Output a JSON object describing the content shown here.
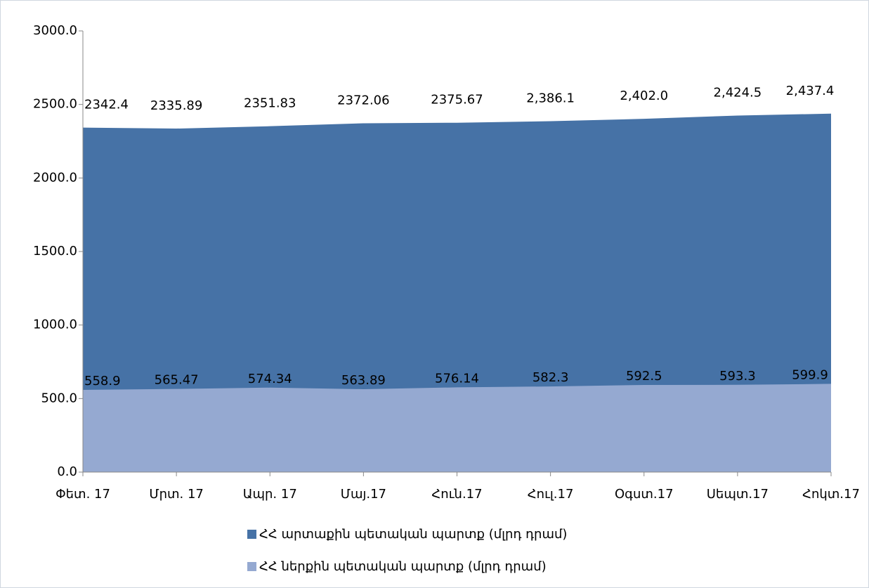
{
  "chart_data": {
    "type": "area",
    "categories": [
      "Փետ. 17",
      "Մրտ. 17",
      "Ապր. 17",
      "Մայ.17",
      "Հուն.17",
      "Հուլ.17",
      "Օգստ.17",
      "Սեպտ.17",
      "Հոկտ.17"
    ],
    "series": [
      {
        "name": "ՀՀ արտաքին պետական պարտք (մլրդ դրամ)",
        "color": "#4672a6",
        "values": [
          2342.4,
          2335.89,
          2351.83,
          2372.06,
          2375.67,
          2386.1,
          2402.0,
          2424.5,
          2437.4
        ],
        "value_labels": [
          "2342.4",
          "2335.89",
          "2351.83",
          "2372.06",
          "2375.67",
          "2,386.1",
          "2,402.0",
          "2,424.5",
          "2,437.4"
        ]
      },
      {
        "name": "ՀՀ ներքին պետական պարտք (մլրդ դրամ)",
        "color": "#95a9d1",
        "values": [
          558.9,
          565.47,
          574.34,
          563.89,
          576.14,
          582.3,
          592.5,
          593.3,
          599.9
        ]
      }
    ],
    "ylim": [
      0,
      3000
    ],
    "yticks": [
      {
        "value": 0,
        "label": "0.0"
      },
      {
        "value": 500,
        "label": "500.0"
      },
      {
        "value": 1000,
        "label": "1000.0"
      },
      {
        "value": 1500,
        "label": "1500.0"
      },
      {
        "value": 2000,
        "label": "2000.0"
      },
      {
        "value": 2500,
        "label": "2500.0"
      },
      {
        "value": 3000,
        "label": "3000.0"
      }
    ]
  }
}
